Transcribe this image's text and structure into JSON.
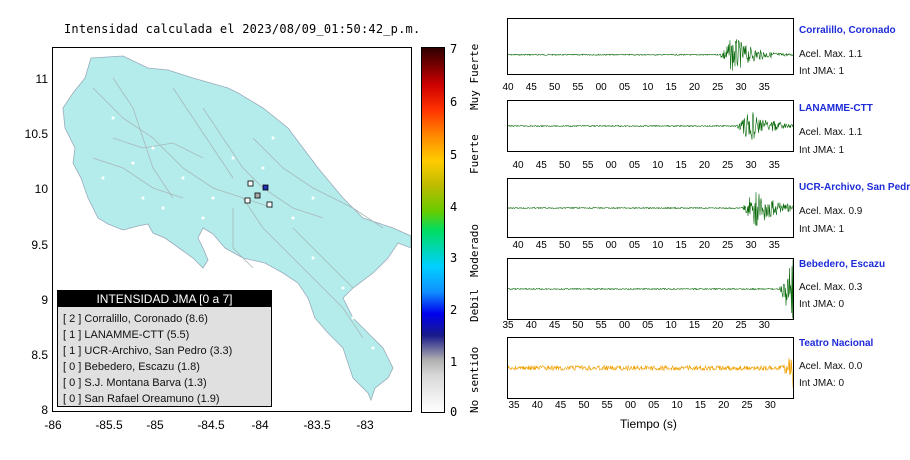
{
  "map": {
    "title": "Intensidad calculada el 2023/08/09_01:50:42_p.m.",
    "y_ticks": [
      "11",
      "10.5",
      "10",
      "9.5",
      "9",
      "8.5",
      "8"
    ],
    "x_ticks": [
      "-86",
      "-85.5",
      "-85",
      "-84.5",
      "-84",
      "-83.5",
      "-83"
    ],
    "land_color": "#b4ecec",
    "legend": {
      "title": "INTENSIDAD JMA [0 a 7]",
      "items": [
        "[ 2 ]  Corralillo, Coronado (8.6)",
        "[ 1 ]  LANAMME-CTT (5.5)",
        "[ 1 ]  UCR-Archivo, San Pedro (3.3)",
        "[ 0 ]  Bebedero, Escazu (1.8)",
        "[ 0 ]  S.J. Montana Barva (1.3)",
        "[ 0 ]  San Rafael Oreamuno (1.9)"
      ]
    }
  },
  "colorbar": {
    "numbers": [
      "7",
      "6",
      "5",
      "4",
      "3",
      "2",
      "1",
      "0"
    ],
    "words": [
      "Muy Fuerte",
      "Fuerte",
      "Moderado",
      "Debil",
      "No sentido"
    ]
  },
  "stations": [
    {
      "name": "Corralillo, Coronado",
      "acel": "Acel. Max. 1.1",
      "jma": "Int JMA: 1",
      "color": "#0a6a0a",
      "ticks": [
        "40",
        "45",
        "50",
        "55",
        "00",
        "05",
        "10",
        "15",
        "20",
        "25",
        "30",
        "35"
      ]
    },
    {
      "name": "LANAMME-CTT",
      "acel": "Acel. Max. 1.1",
      "jma": "Int JMA: 1",
      "color": "#0a6a0a",
      "ticks": [
        "40",
        "45",
        "50",
        "55",
        "00",
        "05",
        "10",
        "15",
        "20",
        "25",
        "30",
        "35"
      ]
    },
    {
      "name": "UCR-Archivo, San Pedro",
      "acel": "Acel. Max. 0.9",
      "jma": "Int JMA: 1",
      "color": "#0a6a0a",
      "ticks": [
        "40",
        "45",
        "50",
        "55",
        "00",
        "05",
        "10",
        "15",
        "20",
        "25",
        "30",
        "35"
      ]
    },
    {
      "name": "Bebedero, Escazu",
      "acel": "Acel. Max. 0.3",
      "jma": "Int JMA: 0",
      "color": "#0a6a0a",
      "ticks": [
        "35",
        "40",
        "45",
        "50",
        "55",
        "00",
        "05",
        "10",
        "15",
        "20",
        "25",
        "30"
      ]
    },
    {
      "name": "Teatro Nacional",
      "acel": "Acel. Max. 0.0",
      "jma": "Int JMA: 0",
      "color": "#f0a000",
      "ticks": [
        "35",
        "40",
        "45",
        "50",
        "55",
        "00",
        "05",
        "10",
        "15",
        "20",
        "25",
        "30"
      ]
    }
  ],
  "xlabel": "Tiempo (s)"
}
